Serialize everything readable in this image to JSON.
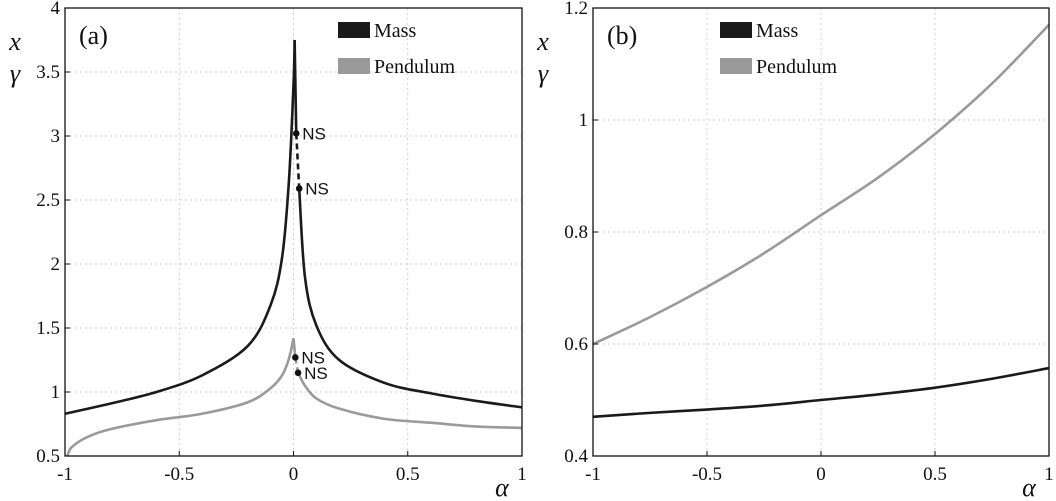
{
  "chart_data": [
    {
      "type": "line",
      "panel_label": "(a)",
      "xlabel": "α",
      "ylabel_top": "x",
      "ylabel_bottom": "γ",
      "xlim": [
        -1,
        1
      ],
      "ylim": [
        0.5,
        4
      ],
      "xticks": [
        -1,
        -0.5,
        0,
        0.5,
        1
      ],
      "xtick_labels": [
        "-1",
        "-0.5",
        "0",
        "0.5",
        "1"
      ],
      "yticks": [
        0.5,
        1,
        1.5,
        2,
        2.5,
        3,
        3.5,
        4
      ],
      "ytick_labels": [
        "0.5",
        "1",
        "1.5",
        "2",
        "2.5",
        "3",
        "3.5",
        "4"
      ],
      "grid": true,
      "legend_position": "top-right",
      "series": [
        {
          "name": "Mass",
          "color": "#1a1a1a",
          "solid_left": {
            "x": [
              -1,
              -0.8,
              -0.6,
              -0.4,
              -0.2,
              -0.1,
              -0.05,
              -0.02,
              0,
              0.005
            ],
            "y": [
              0.83,
              0.91,
              1.0,
              1.13,
              1.36,
              1.68,
              2.05,
              2.65,
              3.4,
              3.75
            ]
          },
          "solid_right": {
            "x": [
              0.005,
              0.012
            ],
            "y": [
              3.75,
              3.02
            ]
          },
          "dashed": {
            "x": [
              0.012,
              0.025
            ],
            "y": [
              3.02,
              2.59
            ]
          },
          "solid_right2": {
            "x": [
              0.025,
              0.05,
              0.1,
              0.2,
              0.4,
              0.6,
              0.8,
              1
            ],
            "y": [
              2.59,
              1.9,
              1.52,
              1.25,
              1.07,
              0.99,
              0.93,
              0.88
            ]
          },
          "ns_points": [
            {
              "x": 0.012,
              "y": 3.02,
              "label": "NS"
            },
            {
              "x": 0.025,
              "y": 2.59,
              "label": "NS"
            }
          ]
        },
        {
          "name": "Pendulum",
          "color": "#9a9a9a",
          "solid_left": {
            "x": [
              -0.99,
              -0.97,
              -0.9,
              -0.8,
              -0.6,
              -0.4,
              -0.2,
              -0.1,
              -0.05,
              -0.02,
              0
            ],
            "y": [
              0.5,
              0.57,
              0.65,
              0.71,
              0.78,
              0.83,
              0.92,
              1.03,
              1.13,
              1.26,
              1.42
            ]
          },
          "solid_right": {
            "x": [
              0,
              0.008
            ],
            "y": [
              1.42,
              1.27
            ]
          },
          "dashed": {
            "x": [
              0.008,
              0.02
            ],
            "y": [
              1.27,
              1.15
            ]
          },
          "solid_right2": {
            "x": [
              0.02,
              0.05,
              0.1,
              0.2,
              0.4,
              0.6,
              0.8,
              1
            ],
            "y": [
              1.15,
              1.05,
              0.95,
              0.87,
              0.79,
              0.76,
              0.73,
              0.72
            ]
          },
          "ns_points": [
            {
              "x": 0.008,
              "y": 1.27,
              "label": "NS"
            },
            {
              "x": 0.02,
              "y": 1.15,
              "label": "NS"
            }
          ]
        }
      ]
    },
    {
      "type": "line",
      "panel_label": "(b)",
      "xlabel": "α",
      "ylabel_top": "x",
      "ylabel_bottom": "γ",
      "xlim": [
        -1,
        1
      ],
      "ylim": [
        0.4,
        1.2
      ],
      "xticks": [
        -1,
        -0.5,
        0,
        0.5,
        1
      ],
      "xtick_labels": [
        "-1",
        "-0.5",
        "0",
        "0.5",
        "1"
      ],
      "yticks": [
        0.4,
        0.6,
        0.8,
        1,
        1.2
      ],
      "ytick_labels": [
        "0.4",
        "0.6",
        "0.8",
        "1",
        "1.2"
      ],
      "grid": true,
      "legend_position": "top-left",
      "series": [
        {
          "name": "Mass",
          "color": "#1a1a1a",
          "x": [
            -1,
            -0.75,
            -0.5,
            -0.25,
            0,
            0.25,
            0.5,
            0.75,
            1
          ],
          "y": [
            0.47,
            0.477,
            0.483,
            0.49,
            0.5,
            0.51,
            0.522,
            0.538,
            0.557
          ]
        },
        {
          "name": "Pendulum",
          "color": "#9a9a9a",
          "x": [
            -1,
            -0.75,
            -0.5,
            -0.25,
            0,
            0.25,
            0.5,
            0.75,
            1
          ],
          "y": [
            0.6,
            0.648,
            0.702,
            0.762,
            0.83,
            0.897,
            0.975,
            1.065,
            1.17
          ]
        }
      ]
    }
  ]
}
